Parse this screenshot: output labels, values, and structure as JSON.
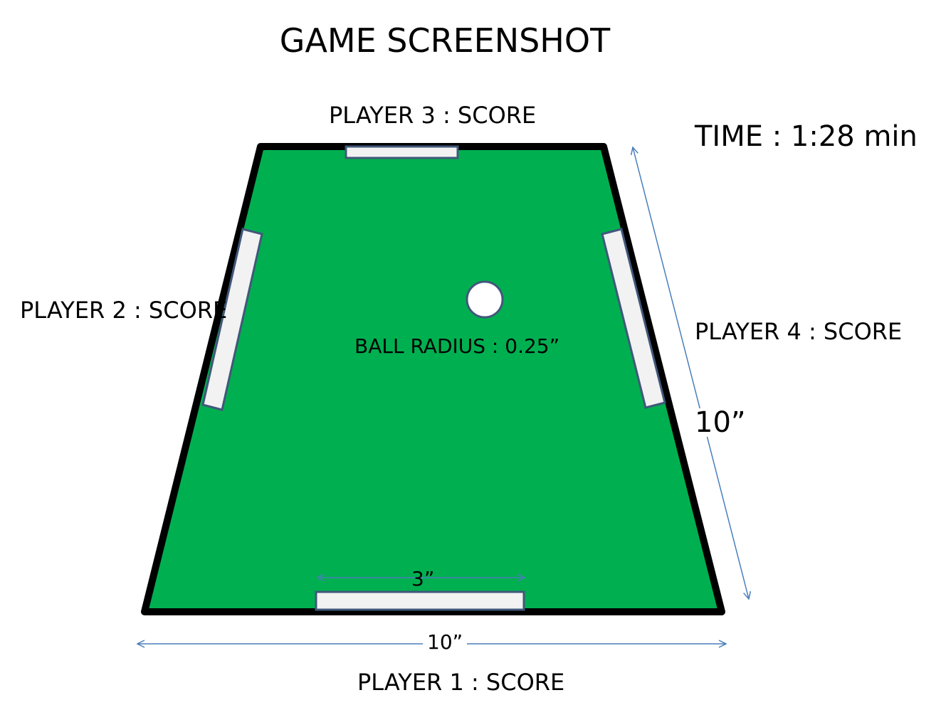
{
  "title": "GAME SCREENSHOT",
  "players": {
    "p1": "PLAYER 1 : SCORE",
    "p2": "PLAYER 2 : SCORE",
    "p3": "PLAYER 3 : SCORE",
    "p4": "PLAYER 4 : SCORE"
  },
  "timer": "TIME : 1:28 min",
  "ball": {
    "label": "BALL RADIUS : 0.25”"
  },
  "dimensions": {
    "paddle_width": "3”",
    "bottom_length": "10”",
    "side_length": "10”"
  },
  "colors": {
    "field": "#00b050",
    "border": "#000000",
    "paddle_fill": "#f2f2f2",
    "paddle_stroke": "#41587a",
    "ball_fill": "#ffffff",
    "dimension_arrow": "#4a7ebb"
  }
}
